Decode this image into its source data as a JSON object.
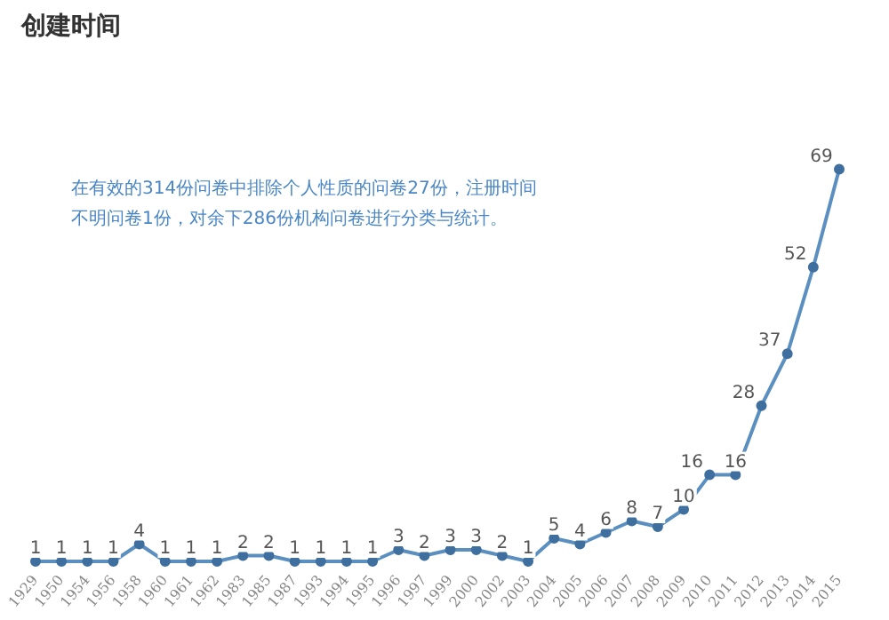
{
  "chart_data": {
    "type": "line",
    "title": "创建时间",
    "annotations": [
      "在有效的314份问卷中排除个人性质的问卷27份，注册时间不明问卷1份，对余下286份机构问卷进行分类与统计。"
    ],
    "categories": [
      "1929",
      "1950",
      "1954",
      "1956",
      "1958",
      "1960",
      "1961",
      "1962",
      "1983",
      "1985",
      "1987",
      "1993",
      "1994",
      "1995",
      "1996",
      "1997",
      "1999",
      "2000",
      "2002",
      "2003",
      "2004",
      "2005",
      "2006",
      "2007",
      "2008",
      "2009",
      "2010",
      "2011",
      "2012",
      "2013",
      "2014",
      "2015"
    ],
    "values": [
      1,
      1,
      1,
      1,
      4,
      1,
      1,
      1,
      2,
      2,
      1,
      1,
      1,
      1,
      3,
      2,
      3,
      3,
      2,
      1,
      5,
      4,
      6,
      8,
      7,
      10,
      16,
      16,
      28,
      37,
      52,
      69
    ],
    "color": "#5b8fc0",
    "marker": "circle",
    "line_style": "solid",
    "data_labels": true,
    "grid": false,
    "legend": false,
    "tick_labels": "x"
  }
}
